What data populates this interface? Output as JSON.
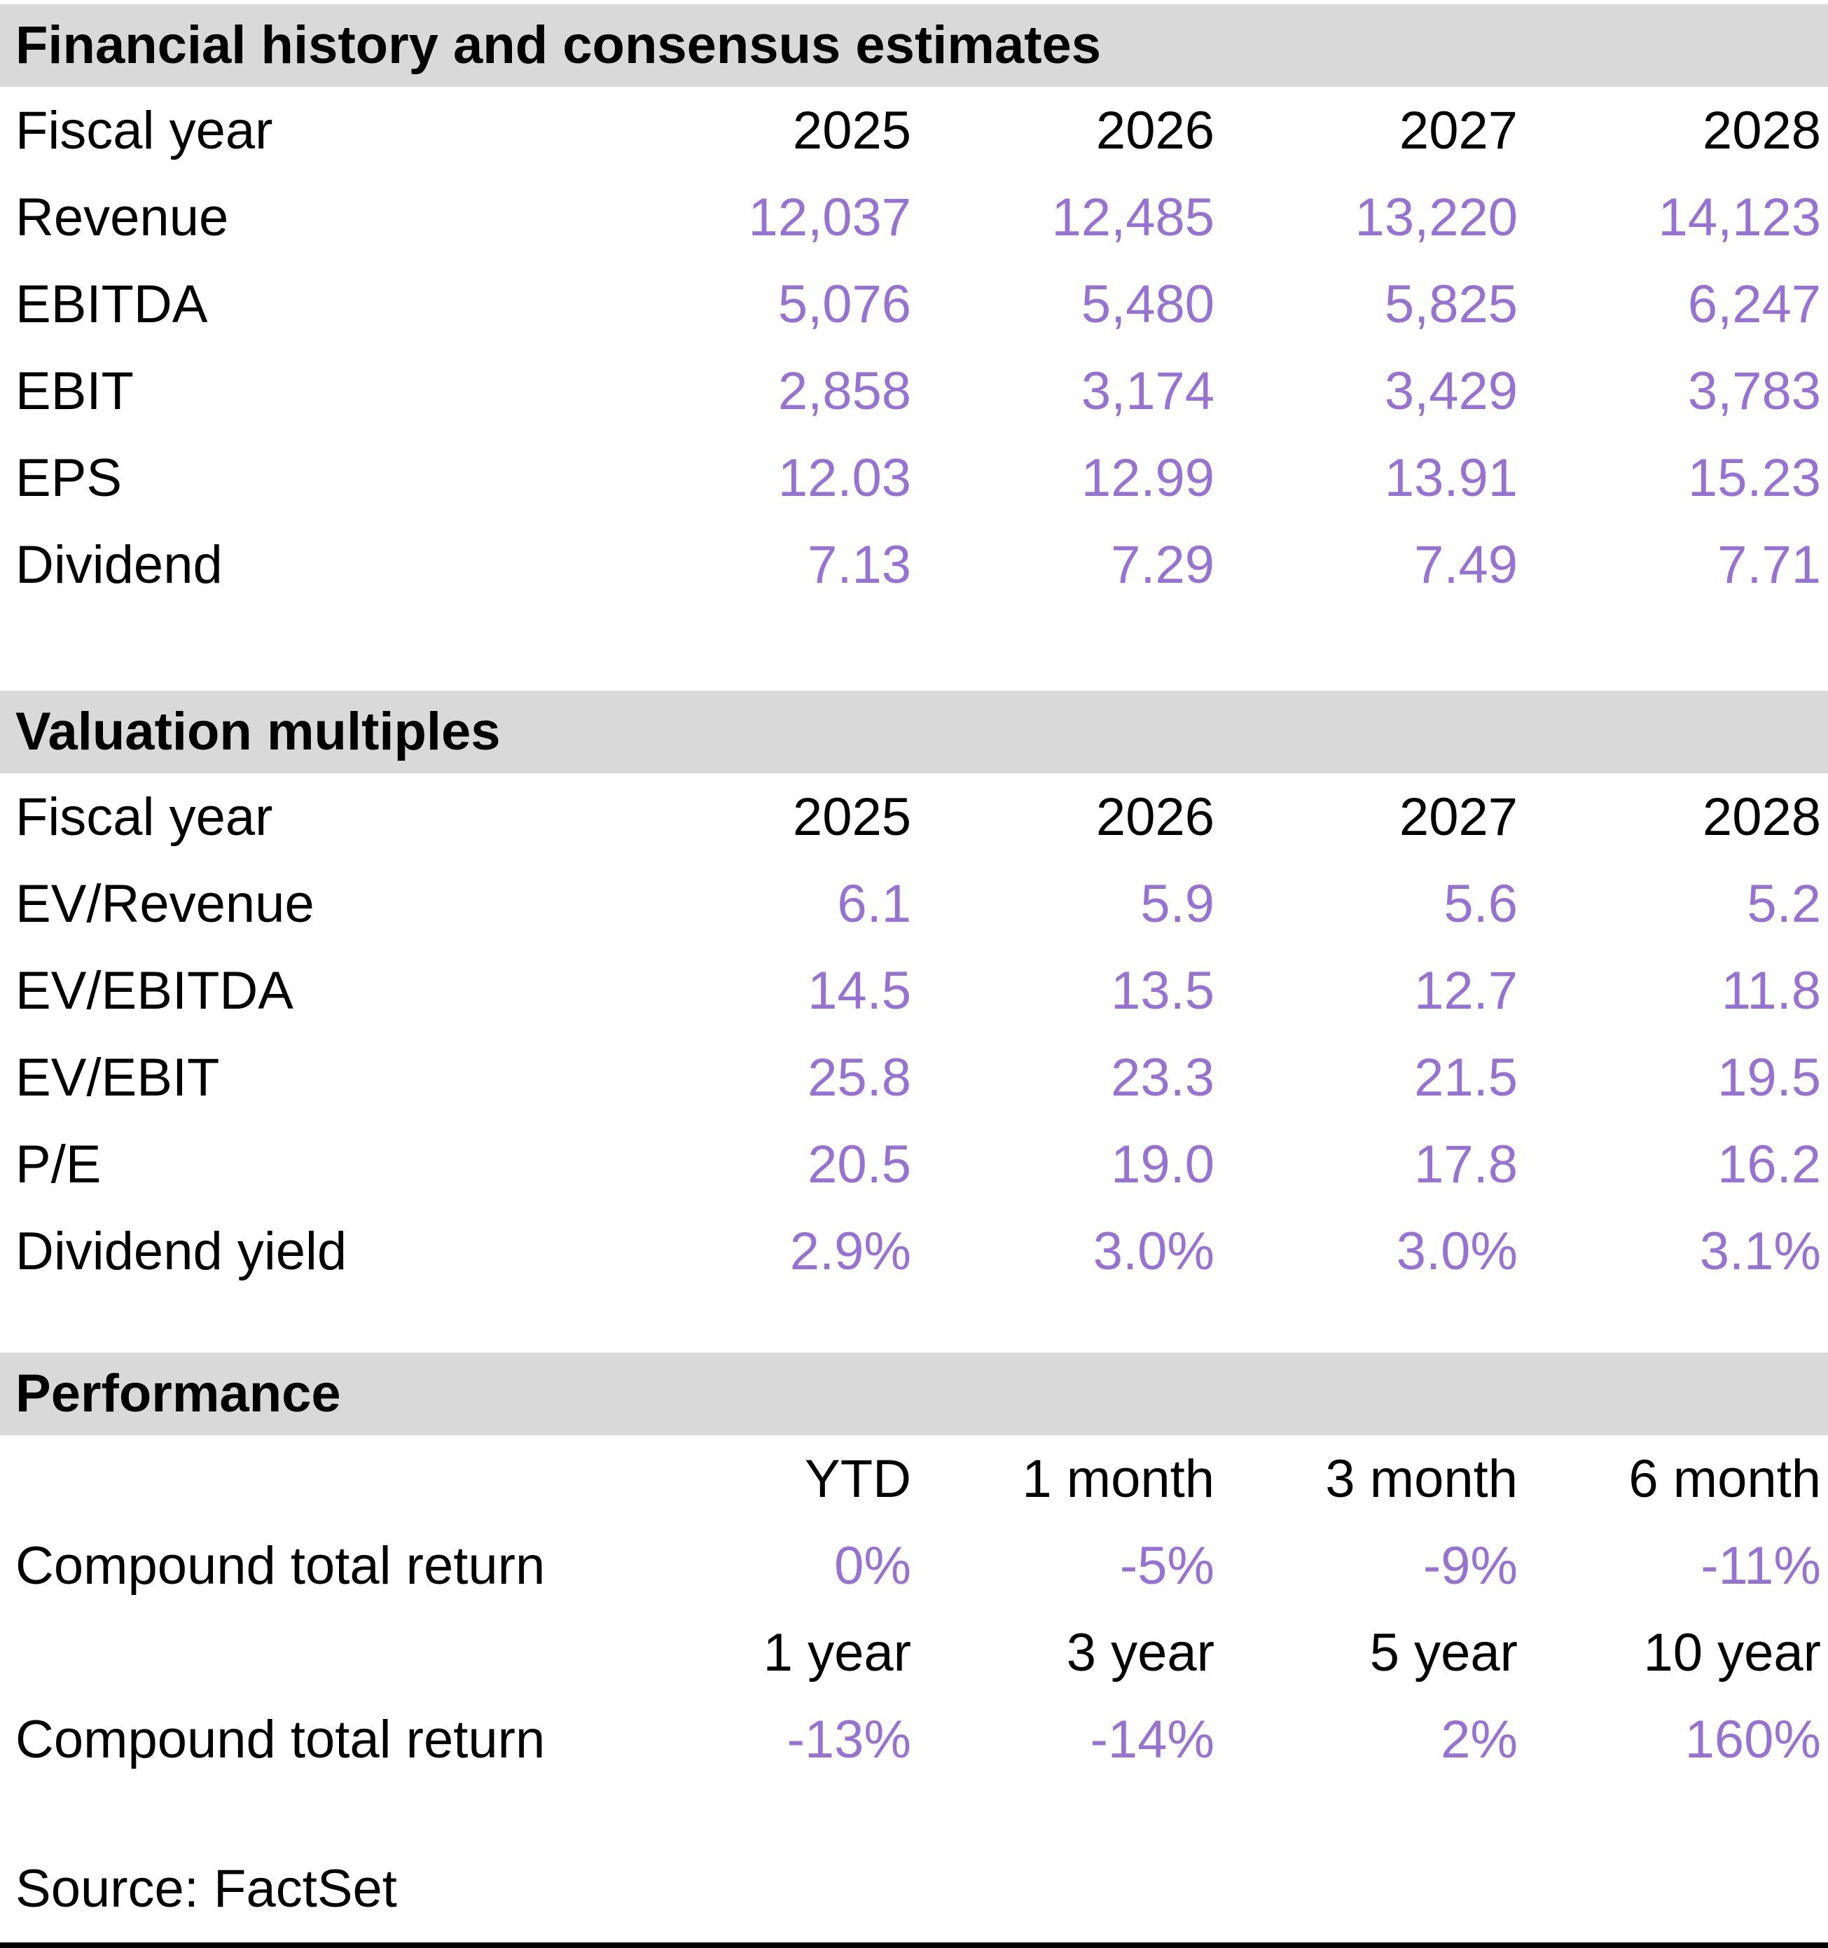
{
  "colors": {
    "band_background": "#D9D9D9",
    "value_text": "#9673D2",
    "label_text": "#000000"
  },
  "section1": {
    "title": "Financial history and consensus estimates",
    "header": {
      "label": "Fiscal year",
      "col1": "2025",
      "col2": "2026",
      "col3": "2027",
      "col4": "2028"
    },
    "rows": [
      {
        "label": "Revenue",
        "v1": "12,037",
        "v2": "12,485",
        "v3": "13,220",
        "v4": "14,123"
      },
      {
        "label": "EBITDA",
        "v1": "5,076",
        "v2": "5,480",
        "v3": "5,825",
        "v4": "6,247"
      },
      {
        "label": "EBIT",
        "v1": "2,858",
        "v2": "3,174",
        "v3": "3,429",
        "v4": "3,783"
      },
      {
        "label": "EPS",
        "v1": "12.03",
        "v2": "12.99",
        "v3": "13.91",
        "v4": "15.23"
      },
      {
        "label": "Dividend",
        "v1": "7.13",
        "v2": "7.29",
        "v3": "7.49",
        "v4": "7.71"
      }
    ]
  },
  "section2": {
    "title": "Valuation multiples",
    "header": {
      "label": "Fiscal year",
      "col1": "2025",
      "col2": "2026",
      "col3": "2027",
      "col4": "2028"
    },
    "rows": [
      {
        "label": "EV/Revenue",
        "v1": "6.1",
        "v2": "5.9",
        "v3": "5.6",
        "v4": "5.2"
      },
      {
        "label": "EV/EBITDA",
        "v1": "14.5",
        "v2": "13.5",
        "v3": "12.7",
        "v4": "11.8"
      },
      {
        "label": "EV/EBIT",
        "v1": "25.8",
        "v2": "23.3",
        "v3": "21.5",
        "v4": "19.5"
      },
      {
        "label": "P/E",
        "v1": "20.5",
        "v2": "19.0",
        "v3": "17.8",
        "v4": "16.2"
      },
      {
        "label": "Dividend yield",
        "v1": "2.9%",
        "v2": "3.0%",
        "v3": "3.0%",
        "v4": "3.1%"
      }
    ]
  },
  "section3": {
    "title": "Performance",
    "block1": {
      "header": {
        "col1": "YTD",
        "col2": "1 month",
        "col3": "3 month",
        "col4": "6 month"
      },
      "row": {
        "label": "Compound total return",
        "v1": "0%",
        "v2": "-5%",
        "v3": "-9%",
        "v4": "-11%"
      }
    },
    "block2": {
      "header": {
        "col1": "1 year",
        "col2": "3 year",
        "col3": "5 year",
        "col4": "10 year"
      },
      "row": {
        "label": "Compound total return",
        "v1": "-13%",
        "v2": "-14%",
        "v3": "2%",
        "v4": "160%"
      }
    }
  },
  "footer": {
    "source": "Source: FactSet"
  }
}
